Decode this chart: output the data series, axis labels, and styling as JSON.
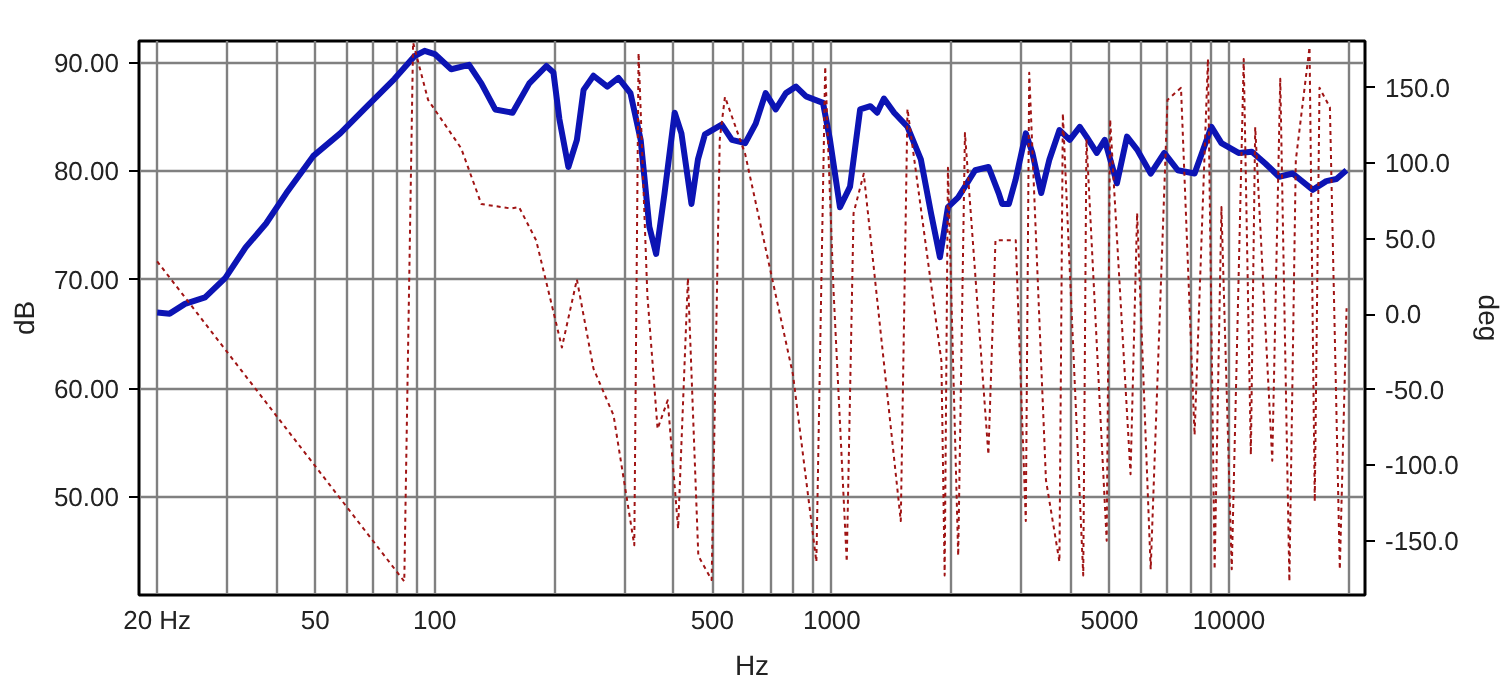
{
  "chart_data": {
    "type": "line",
    "xlabel": "Hz",
    "ylabel": "dB",
    "y2label": "deg",
    "log": "x",
    "grid": true,
    "xlim": [
      18,
      22000
    ],
    "ylim": [
      41,
      92
    ],
    "y2lim": [
      -186,
      181
    ],
    "xticks": [
      {
        "value": 20,
        "label": "20 Hz"
      },
      {
        "value": 30,
        "label": null
      },
      {
        "value": 40,
        "label": null
      },
      50,
      {
        "value": 60,
        "label": null
      },
      {
        "value": 70,
        "label": null
      },
      {
        "value": 80,
        "label": null
      },
      {
        "value": 90,
        "label": null
      },
      100,
      {
        "value": 200,
        "label": null
      },
      {
        "value": 300,
        "label": null
      },
      {
        "value": 400,
        "label": null
      },
      500,
      {
        "value": 600,
        "label": null
      },
      {
        "value": 700,
        "label": null
      },
      {
        "value": 800,
        "label": null
      },
      {
        "value": 900,
        "label": null
      },
      1000,
      {
        "value": 2000,
        "label": null
      },
      {
        "value": 3000,
        "label": null
      },
      {
        "value": 4000,
        "label": null
      },
      5000,
      {
        "value": 6000,
        "label": null
      },
      {
        "value": 7000,
        "label": null
      },
      {
        "value": 8000,
        "label": null
      },
      {
        "value": 9000,
        "label": null
      },
      10000,
      {
        "value": 20000,
        "label": null
      }
    ],
    "yticks": [
      {
        "value": 50,
        "label": "50.00"
      },
      {
        "value": 60,
        "label": "60.00"
      },
      {
        "value": 70,
        "label": "70.00"
      },
      {
        "value": 80,
        "label": "80.00"
      },
      {
        "value": 90,
        "label": "90.00"
      }
    ],
    "y2ticks": [
      {
        "value": -150,
        "label": "-150.0"
      },
      {
        "value": -100,
        "label": "-100.0"
      },
      {
        "value": -50,
        "label": "-50.0"
      },
      {
        "value": 0,
        "label": "0.0"
      },
      {
        "value": 50,
        "label": "50.0"
      },
      {
        "value": 100,
        "label": "100.0"
      },
      {
        "value": 150,
        "label": "150.0"
      }
    ],
    "series": [
      {
        "color": "#0c14b4",
        "line_style": "solid",
        "x": [
          20,
          21.5,
          23.5,
          26.4,
          29.7,
          33.4,
          37.6,
          42.3,
          49.4,
          57.8,
          67.6,
          79.1,
          88.9,
          94.3,
          100,
          110,
          122,
          131,
          142,
          157,
          173,
          191,
          199,
          206,
          217,
          228,
          237,
          251,
          272,
          290,
          311,
          330,
          347,
          361,
          379,
          402,
          418,
          443,
          460,
          479,
          528,
          560,
          605,
          643,
          681,
          722,
          766,
          812,
          861,
          950,
          989,
          1048,
          1111,
          1178,
          1250,
          1300,
          1352,
          1435,
          1550,
          1675,
          1778,
          1871,
          1960,
          2080,
          2295,
          2480,
          2630,
          2684,
          2790,
          2900,
          3078,
          3198,
          3366,
          3530,
          3742,
          3971,
          4210,
          4375,
          4645,
          4865,
          5220,
          5535,
          5870,
          6350,
          6870,
          7430,
          8190,
          9030,
          9570,
          10570,
          11420,
          12360,
          13370,
          14460,
          16260,
          17580,
          18640,
          19760
        ],
        "values": [
          67.0,
          66.9,
          67.8,
          68.4,
          70.2,
          73.0,
          75.2,
          78.0,
          81.4,
          83.5,
          86.0,
          88.5,
          90.6,
          91.1,
          90.8,
          89.4,
          89.8,
          88.1,
          85.7,
          85.4,
          88.1,
          89.7,
          89.1,
          84.8,
          80.4,
          82.9,
          87.5,
          88.8,
          87.8,
          88.6,
          87.2,
          82.9,
          74.9,
          72.4,
          78.0,
          85.4,
          83.5,
          77.0,
          81.1,
          83.4,
          84.3,
          82.9,
          82.6,
          84.4,
          87.2,
          85.7,
          87.2,
          87.8,
          86.9,
          86.3,
          82.9,
          76.7,
          78.6,
          85.7,
          86.0,
          85.4,
          86.7,
          85.4,
          84.1,
          81.1,
          76.1,
          72.1,
          76.7,
          77.6,
          80.1,
          80.4,
          78.0,
          77.0,
          77.0,
          79.2,
          83.5,
          81.7,
          78.0,
          81.1,
          83.8,
          82.9,
          84.1,
          83.2,
          81.7,
          82.9,
          78.9,
          83.2,
          82.0,
          79.8,
          81.7,
          80.1,
          79.8,
          84.1,
          82.6,
          81.7,
          81.8,
          80.7,
          79.5,
          79.8,
          78.3,
          79.1,
          79.3,
          80.1
        ]
      },
      {
        "axis": "y2",
        "color": "#a01414",
        "line_style": "dotted",
        "x": [
          20,
          83.8,
          88.2,
          96.2,
          116.5,
          131,
          156,
          163,
          180,
          198,
          209,
          228,
          251,
          282,
          318,
          326,
          343,
          364,
          386,
          410,
          434,
          461,
          498,
          522,
          538,
          605,
          798,
          914,
          962,
          1009,
          1090,
          1134,
          1203,
          1491,
          1550,
          1887,
          1923,
          1960,
          2080,
          2163,
          2478,
          2582,
          2904,
          3078,
          3140,
          3460,
          3741,
          3816,
          4295,
          4375,
          4920,
          5020,
          5650,
          5870,
          6350,
          7000,
          7570,
          8190,
          8850,
          9200,
          9570,
          10160,
          10890,
          11350,
          11640,
          12850,
          13460,
          14190,
          14730,
          15950,
          16440,
          16900,
          17950,
          19010,
          19770
        ],
        "values": [
          35,
          -177,
          180,
          142,
          110,
          73,
          70,
          71,
          49,
          4,
          -22,
          23,
          -36,
          -67,
          -153,
          173,
          13,
          -76,
          -57,
          -142,
          24,
          -160,
          -176,
          116,
          144,
          106,
          -40,
          -164,
          164,
          17,
          -164,
          67,
          93,
          -137,
          136,
          -31,
          -173,
          97,
          -160,
          120,
          -93,
          49,
          49,
          -137,
          160,
          -110,
          -164,
          133,
          -173,
          116,
          -150,
          129,
          -106,
          67,
          -169,
          142,
          150,
          -80,
          169,
          -169,
          71,
          -169,
          169,
          -93,
          124,
          -97,
          156,
          -177,
          102,
          177,
          -124,
          150,
          137,
          -169,
          4
        ]
      }
    ]
  }
}
